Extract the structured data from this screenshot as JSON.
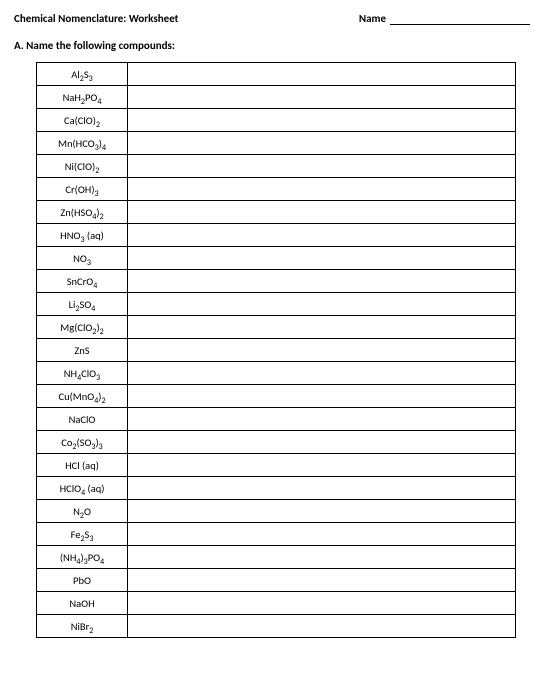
{
  "header": {
    "title": "Chemical Nomenclature: Worksheet",
    "name_label": "Name"
  },
  "section": {
    "label": "A. Name the following compounds:"
  },
  "compounds": [
    {
      "formula_html": "Al<sub>2</sub>S<sub>3</sub>"
    },
    {
      "formula_html": "NaH<sub>2</sub>PO<sub>4</sub>"
    },
    {
      "formula_html": "Ca(ClO)<sub>2</sub>"
    },
    {
      "formula_html": "Mn(HCO<sub>3</sub>)<sub>4</sub>"
    },
    {
      "formula_html": "Ni(ClO)<sub>2</sub>"
    },
    {
      "formula_html": "Cr(OH)<sub>3</sub>"
    },
    {
      "formula_html": "Zn(HSO<sub>4</sub>)<sub>2</sub>"
    },
    {
      "formula_html": "HNO<sub>3</sub> (aq)"
    },
    {
      "formula_html": "NO<sub>3</sub>"
    },
    {
      "formula_html": "SnCrO<sub>4</sub>"
    },
    {
      "formula_html": "Li<sub>2</sub>SO<sub>4</sub>"
    },
    {
      "formula_html": "Mg(ClO<sub>2</sub>)<sub>2</sub>"
    },
    {
      "formula_html": "ZnS"
    },
    {
      "formula_html": "NH<sub>4</sub>ClO<sub>3</sub>"
    },
    {
      "formula_html": "Cu(MnO<sub>4</sub>)<sub>2</sub>"
    },
    {
      "formula_html": "NaClO"
    },
    {
      "formula_html": "Co<sub>2</sub>(SO<sub>3</sub>)<sub>3</sub>"
    },
    {
      "formula_html": "HCl (aq)"
    },
    {
      "formula_html": "HClO<sub>4</sub> (aq)"
    },
    {
      "formula_html": "N<sub>2</sub>O"
    },
    {
      "formula_html": "Fe<sub>2</sub>S<sub>3</sub>"
    },
    {
      "formula_html": "(NH<sub>4</sub>)<sub>3</sub>PO<sub>4</sub>"
    },
    {
      "formula_html": "PbO"
    },
    {
      "formula_html": "NaOH"
    },
    {
      "formula_html": "NiBr<sub>2</sub>"
    }
  ]
}
